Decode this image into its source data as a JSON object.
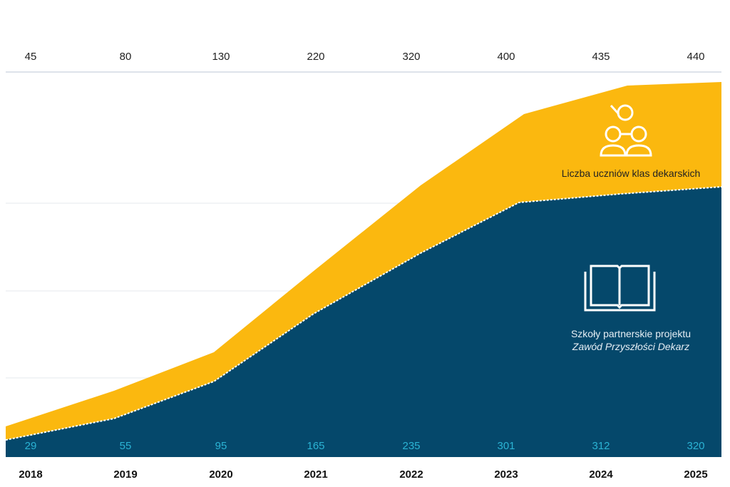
{
  "chart_data": {
    "type": "area",
    "stacked": true,
    "categories": [
      "2018",
      "2019",
      "2020",
      "2021",
      "2022",
      "2023",
      "2024",
      "2025"
    ],
    "series": [
      {
        "name": "Szkoły partnerskie projektu Zawód Przyszłości Dekarz",
        "values": [
          29,
          55,
          95,
          165,
          235,
          301,
          312,
          320
        ],
        "color": "#05486b",
        "label_color": "#2bb3d4"
      },
      {
        "name": "Liczba uczniów klas dekarskich",
        "values": [
          45,
          80,
          130,
          220,
          320,
          400,
          435,
          440
        ],
        "color": "#fbb80f"
      }
    ],
    "grid": true,
    "title": "",
    "xlabel": "",
    "ylabel": ""
  },
  "legend": {
    "students_label": "Liczba uczniów klas dekarskich",
    "schools_label_line1": "Szkoły partnerskie projektu",
    "schools_label_line2": "Zawód Przyszłości Dekarz",
    "students_icon": "students-icon",
    "schools_icon": "open-book-icon"
  }
}
